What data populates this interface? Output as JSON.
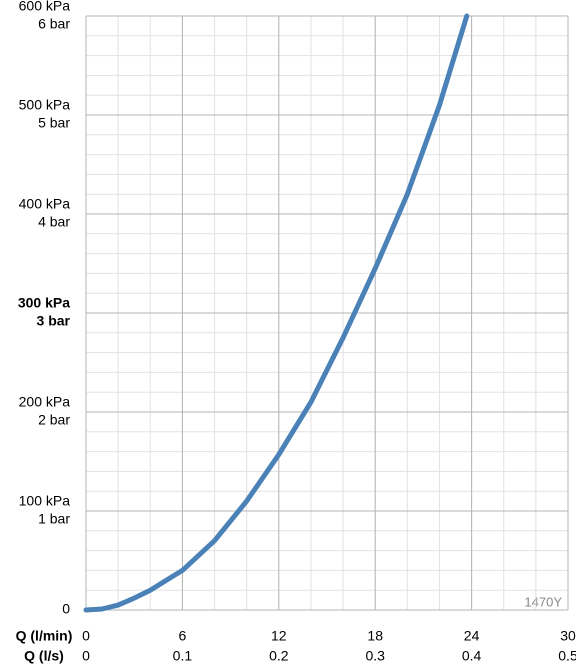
{
  "chart_data": {
    "type": "line",
    "x": [
      0,
      1,
      2,
      3,
      4,
      5,
      6,
      8,
      10,
      12,
      14,
      16,
      18,
      20,
      22,
      23.7
    ],
    "series": [
      {
        "color": "#4a82b8",
        "values": [
          0,
          1,
          5,
          12,
          20,
          30,
          40,
          70,
          110,
          157,
          210,
          275,
          345,
          420,
          510,
          600
        ]
      }
    ],
    "xlim": [
      0,
      30
    ],
    "xticks": [
      0,
      6,
      12,
      18,
      24,
      30
    ],
    "xlabel": "Q (l/min)",
    "x2lim": [
      0,
      0.5
    ],
    "x2ticks": [
      0,
      0.1,
      0.2,
      0.3,
      0.4,
      0.5
    ],
    "x2label": "Q (l/s)",
    "ylim": [
      0,
      600
    ],
    "yticks": [
      0,
      {
        "value": 100,
        "label": "100 kPa",
        "sublabel": "1 bar"
      },
      {
        "value": 200,
        "label": "200 kPa",
        "sublabel": "2 bar"
      },
      {
        "value": 300,
        "label": "300 kPa",
        "sublabel": "3 bar",
        "bold": true
      },
      {
        "value": 400,
        "label": "400 kPa",
        "sublabel": "4 bar"
      },
      {
        "value": 500,
        "label": "500 kPa",
        "sublabel": "5 bar"
      },
      {
        "value": 600,
        "label": "600 kPa",
        "sublabel": "6 bar"
      }
    ],
    "minor_xstep": 2,
    "minor_ystep": 20,
    "grid": true,
    "annotation": "1470Y"
  }
}
